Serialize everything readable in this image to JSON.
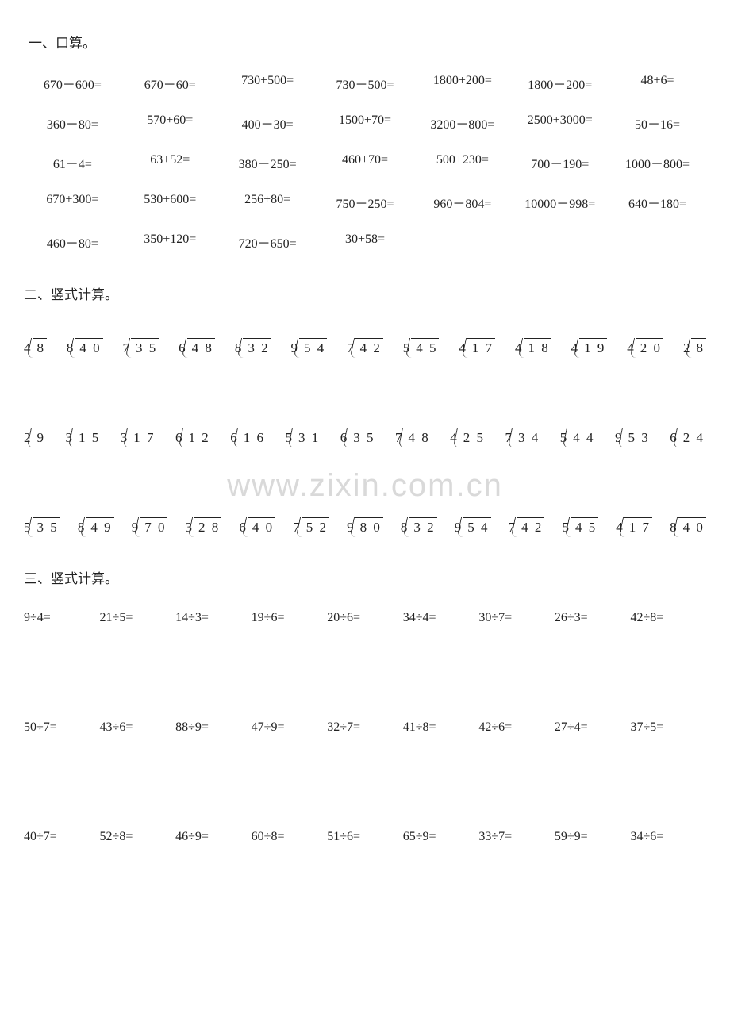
{
  "text_color": "#222222",
  "background_color": "#ffffff",
  "watermark": {
    "text": "www.zixin.com.cn",
    "color": "#d9d9d9",
    "fontsize": 40
  },
  "section1": {
    "title": "一、口算。",
    "title_fontsize": 17,
    "cell_fontsize": 16,
    "columns": 7,
    "cells": [
      "670－600=",
      "670－60=",
      "730+500=",
      "730－500=",
      "1800+200=",
      "1800－200=",
      "48+6=",
      "360－80=",
      "570+60=",
      "400－30=",
      "1500+70=",
      "3200－800=",
      "2500+3000=",
      "50－16=",
      "61－4=",
      "63+52=",
      "380－250=",
      "460+70=",
      "500+230=",
      "700－190=",
      "1000－800=",
      "670+300=",
      "530+600=",
      "256+80=",
      "750－250=",
      "960－804=",
      "10000－998=",
      "640－180=",
      "460－80=",
      "350+120=",
      "720－650=",
      "30+58=",
      "",
      "",
      ""
    ]
  },
  "section2": {
    "title": "二、竖式计算。",
    "title_fontsize": 17,
    "problem_fontsize": 17,
    "rows": [
      [
        {
          "divisor": "4",
          "dividend": "8"
        },
        {
          "divisor": "8",
          "dividend": "4 0"
        },
        {
          "divisor": "7",
          "dividend": "3 5"
        },
        {
          "divisor": "6",
          "dividend": "4 8"
        },
        {
          "divisor": "8",
          "dividend": "3 2"
        },
        {
          "divisor": "9",
          "dividend": "5 4"
        },
        {
          "divisor": "7",
          "dividend": "4 2"
        },
        {
          "divisor": "5",
          "dividend": "4 5"
        },
        {
          "divisor": "4",
          "dividend": "1 7"
        },
        {
          "divisor": "4",
          "dividend": "1 8"
        },
        {
          "divisor": "4",
          "dividend": "1 9"
        },
        {
          "divisor": "4",
          "dividend": "2 0"
        },
        {
          "divisor": "2",
          "dividend": "8"
        }
      ],
      [
        {
          "divisor": "2",
          "dividend": "9"
        },
        {
          "divisor": "3",
          "dividend": "1 5"
        },
        {
          "divisor": "3",
          "dividend": "1 7"
        },
        {
          "divisor": "6",
          "dividend": "1 2"
        },
        {
          "divisor": "6",
          "dividend": "1 6"
        },
        {
          "divisor": "5",
          "dividend": "3 1"
        },
        {
          "divisor": "6",
          "dividend": "3 5"
        },
        {
          "divisor": "7",
          "dividend": "4 8"
        },
        {
          "divisor": "4",
          "dividend": "2 5"
        },
        {
          "divisor": "7",
          "dividend": "3 4"
        },
        {
          "divisor": "5",
          "dividend": "4 4"
        },
        {
          "divisor": "9",
          "dividend": "5 3"
        },
        {
          "divisor": "6",
          "dividend": "2 4"
        }
      ],
      [
        {
          "divisor": "5",
          "dividend": "3 5"
        },
        {
          "divisor": "8",
          "dividend": "4 9"
        },
        {
          "divisor": "9",
          "dividend": "7 0"
        },
        {
          "divisor": "3",
          "dividend": "2 8"
        },
        {
          "divisor": "6",
          "dividend": "4 0"
        },
        {
          "divisor": "7",
          "dividend": "5 2"
        },
        {
          "divisor": "9",
          "dividend": "8 0"
        },
        {
          "divisor": "8",
          "dividend": "3 2"
        },
        {
          "divisor": "9",
          "dividend": "5 4"
        },
        {
          "divisor": "7",
          "dividend": "4 2"
        },
        {
          "divisor": "5",
          "dividend": "4 5"
        },
        {
          "divisor": "4",
          "dividend": "1 7"
        },
        {
          "divisor": "8",
          "dividend": "4 0"
        }
      ]
    ]
  },
  "section3": {
    "title": "三、竖式计算。",
    "title_fontsize": 17,
    "cell_fontsize": 16,
    "columns": 9,
    "rows": [
      [
        "9÷4=",
        "21÷5=",
        "14÷3=",
        "19÷6=",
        "20÷6=",
        "34÷4=",
        "30÷7=",
        "26÷3=",
        "42÷8="
      ],
      [
        "50÷7=",
        "43÷6=",
        "88÷9=",
        "47÷9=",
        "32÷7=",
        "41÷8=",
        "42÷6=",
        "27÷4=",
        "37÷5="
      ],
      [
        "40÷7=",
        "52÷8=",
        "46÷9=",
        "60÷8=",
        "51÷6=",
        "65÷9=",
        "33÷7=",
        "59÷9=",
        "34÷6="
      ]
    ]
  }
}
